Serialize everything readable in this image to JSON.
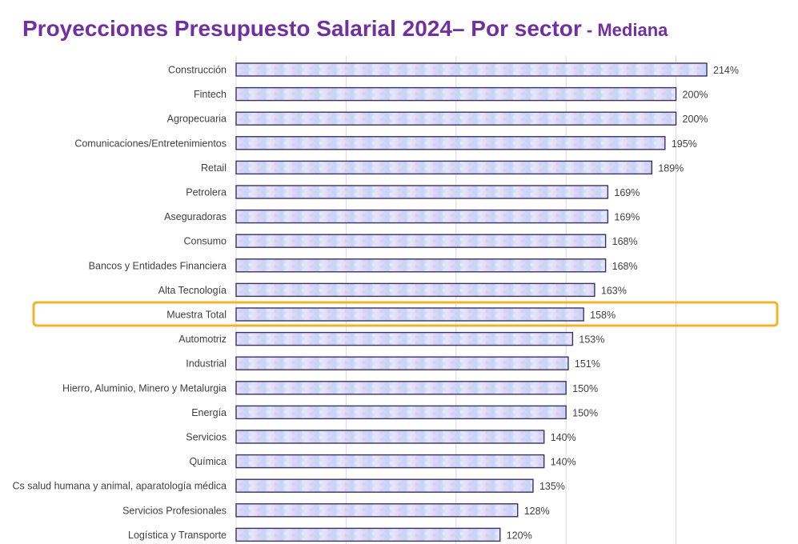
{
  "title": {
    "main": "Proyecciones Presupuesto Salarial 2024– Por sector",
    "separator": " - ",
    "sub": "Mediana"
  },
  "colors": {
    "title": "#7030a0",
    "bar_fill_light": "#dfe8fb",
    "bar_fill_mid": "#c4d4f6",
    "bar_fill_pink": "#ead6f2",
    "bar_stroke": "#3b3163",
    "highlight_border": "#f1b32c",
    "label_text": "#404040",
    "gridline": "#d9d9d9"
  },
  "chart_data": {
    "type": "bar",
    "orientation": "horizontal",
    "title": "Proyecciones Presupuesto Salarial 2024– Por sector - Mediana",
    "xlabel": "",
    "ylabel": "",
    "xlim": [
      0,
      226
    ],
    "grid": true,
    "value_suffix": "%",
    "highlighted_category": "Muestra Total",
    "categories": [
      "Construcción",
      "Fintech",
      "Agropecuaria",
      "Comunicaciones/Entretenimientos",
      "Retail",
      "Petrolera",
      "Aseguradoras",
      "Consumo",
      "Bancos y Entidades Financiera",
      "Alta Tecnología",
      "Muestra Total",
      "Automotriz",
      "Industrial",
      "Hierro, Aluminio, Minero y Metalurgia",
      "Energía",
      "Servicios",
      "Química",
      "Cs salud humana y animal, aparatología médica",
      "Servicios Profesionales",
      "Logística y Transporte"
    ],
    "values": [
      214,
      200,
      200,
      195,
      189,
      169,
      169,
      168,
      168,
      163,
      158,
      153,
      151,
      150,
      150,
      140,
      140,
      135,
      128,
      120
    ],
    "data_labels": [
      "214%",
      "200%",
      "200%",
      "195%",
      "189%",
      "169%",
      "169%",
      "168%",
      "168%",
      "163%",
      "158%",
      "153%",
      "151%",
      "150%",
      "150%",
      "140%",
      "140%",
      "135%",
      "128%",
      "120%"
    ]
  }
}
